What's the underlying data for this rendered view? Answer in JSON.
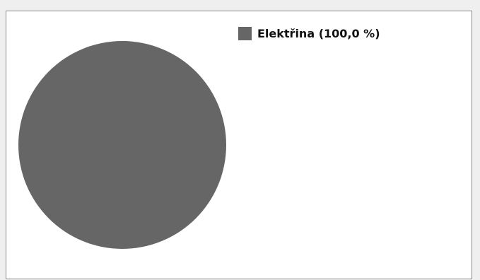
{
  "chart_data": {
    "type": "pie",
    "categories": [
      "Elektřina"
    ],
    "values": [
      100.0
    ],
    "legend_labels": [
      "Elektřina (100,0 %)"
    ],
    "legend_position": "top-right",
    "colors": [
      "#666666"
    ]
  }
}
